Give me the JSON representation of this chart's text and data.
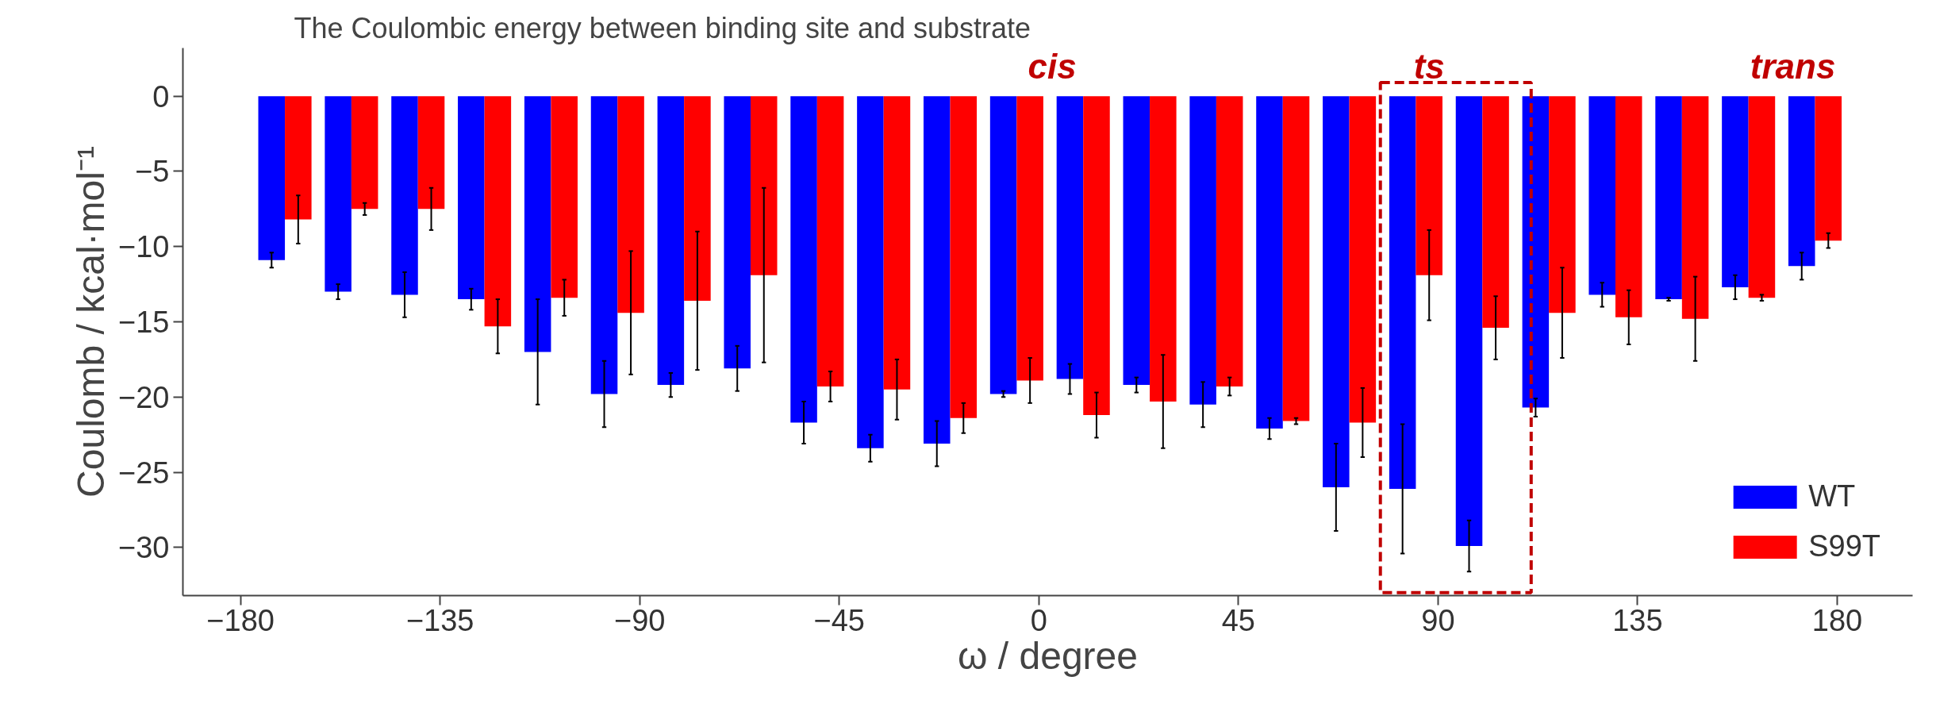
{
  "chart_data": {
    "type": "bar",
    "title": "The Coulombic energy between binding site and substrate",
    "xlabel": "ω / degree",
    "ylabel": "Coulomb / kcal·mol⁻¹",
    "x": [
      -170,
      -155,
      -140,
      -125,
      -110,
      -95,
      -80,
      -65,
      -50,
      -35,
      -20,
      -5,
      10,
      25,
      40,
      55,
      70,
      85,
      100,
      115,
      130,
      145,
      160,
      175
    ],
    "series": [
      {
        "name": "WT",
        "color": "#0000ff",
        "values": [
          -10.9,
          -13.0,
          -13.2,
          -13.5,
          -17.0,
          -19.8,
          -19.2,
          -18.1,
          -21.7,
          -23.4,
          -23.1,
          -19.8,
          -18.8,
          -19.2,
          -20.5,
          -22.1,
          -26.0,
          -26.1,
          -29.9,
          -20.7,
          -13.2,
          -13.5,
          -12.7,
          -11.3
        ],
        "errors": [
          0.5,
          0.5,
          1.5,
          0.7,
          3.5,
          2.2,
          0.8,
          1.5,
          1.4,
          0.9,
          1.5,
          0.2,
          1.0,
          0.5,
          1.5,
          0.7,
          2.9,
          4.3,
          1.7,
          0.6,
          0.8,
          0.1,
          0.8,
          0.9
        ]
      },
      {
        "name": "S99T",
        "color": "#ff0000",
        "values": [
          -8.2,
          -7.5,
          -7.5,
          -15.3,
          -13.4,
          -14.4,
          -13.6,
          -11.9,
          -19.3,
          -19.5,
          -21.4,
          -18.9,
          -21.2,
          -20.3,
          -19.3,
          -21.6,
          -21.7,
          -11.9,
          -15.4,
          -14.4,
          -14.7,
          -14.8,
          -13.4,
          -9.6
        ],
        "errors": [
          1.6,
          0.4,
          1.4,
          1.8,
          1.2,
          4.1,
          4.6,
          5.8,
          1.0,
          2.0,
          1.0,
          1.5,
          1.5,
          3.1,
          0.6,
          0.2,
          2.3,
          3.0,
          2.1,
          3.0,
          1.8,
          2.8,
          0.2,
          0.5
        ]
      }
    ],
    "xlim": [
      -193,
      197
    ],
    "xticks": [
      -180,
      -135,
      -90,
      -45,
      0,
      45,
      90,
      135,
      180
    ],
    "ylim": [
      -33.2,
      3.2
    ],
    "yticks": [
      {
        "value": 0,
        "label": "0"
      },
      {
        "value": -5,
        "label": "−5"
      },
      {
        "value": -10,
        "label": "−10"
      },
      {
        "value": -15,
        "label": "−15"
      },
      {
        "value": -20,
        "label": "−20"
      },
      {
        "value": -25,
        "label": "−25"
      },
      {
        "value": -30,
        "label": "−30"
      }
    ],
    "annotations": [
      "cis",
      "ts",
      "trans"
    ],
    "legend": "bottom right",
    "grid": false
  }
}
